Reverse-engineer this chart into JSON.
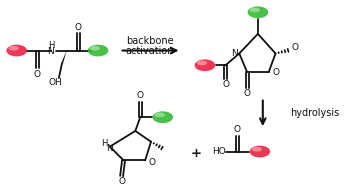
{
  "bg_color": "#ffffff",
  "green_color": "#33bb33",
  "red_color": "#ee2244",
  "bond_color": "#111111",
  "text_color": "#111111",
  "backbone_label_1": "backbone",
  "backbone_label_2": "activation",
  "hydrolysis_label": "hydrolysis",
  "fig_width": 3.5,
  "fig_height": 1.89,
  "dpi": 100
}
